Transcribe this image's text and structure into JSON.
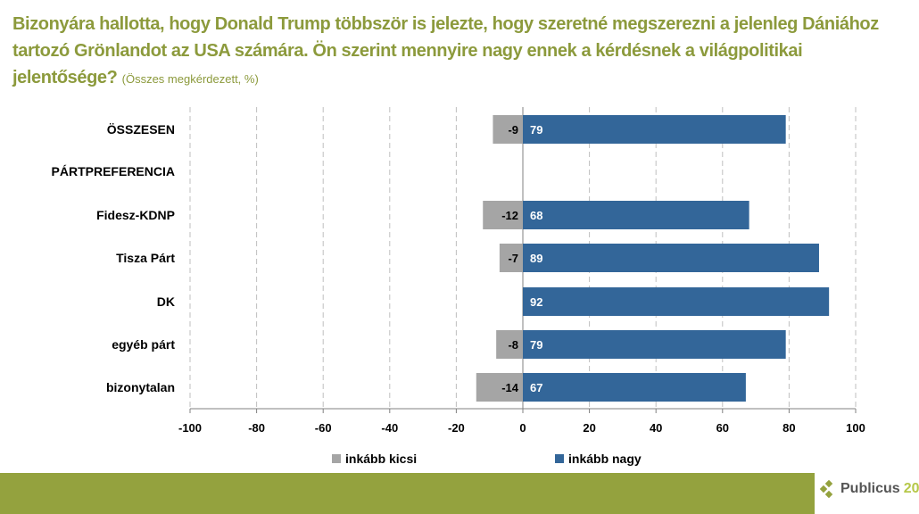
{
  "title": {
    "main": "Bizonyára hallotta, hogy Donald Trump többször is jelezte, hogy szeretné megszerezni a jelenleg Dániához tartozó Grönlandot az USA számára. Ön szerint mennyire nagy ennek a kérdésnek a világpolitikai jelentősége?",
    "note": "(Összes megkérdezett, %)"
  },
  "chart_data": {
    "type": "bar",
    "orientation": "horizontal",
    "stacked": "diverging",
    "categories": [
      "ÖSSZESEN",
      "PÁRTPREFERENCIA",
      "Fidesz-KDNP",
      "Tisza Párt",
      "DK",
      "egyéb párt",
      "bizonytalan"
    ],
    "series": [
      {
        "name": "inkább kicsi",
        "color": "#a5a5a5",
        "values": [
          -9,
          null,
          -12,
          -7,
          null,
          -8,
          -14
        ]
      },
      {
        "name": "inkább nagy",
        "color": "#336699",
        "values": [
          79,
          null,
          68,
          89,
          92,
          79,
          67
        ]
      }
    ],
    "xlim": [
      -100,
      100
    ],
    "xticks": [
      -100,
      -80,
      -60,
      -40,
      -20,
      0,
      20,
      40,
      60,
      80,
      100
    ],
    "grid": "vertical dashed",
    "legend": "bottom"
  },
  "footer": {
    "logo_text": "Publicus",
    "logo_number": "20",
    "bar_color": "#94a23e"
  }
}
